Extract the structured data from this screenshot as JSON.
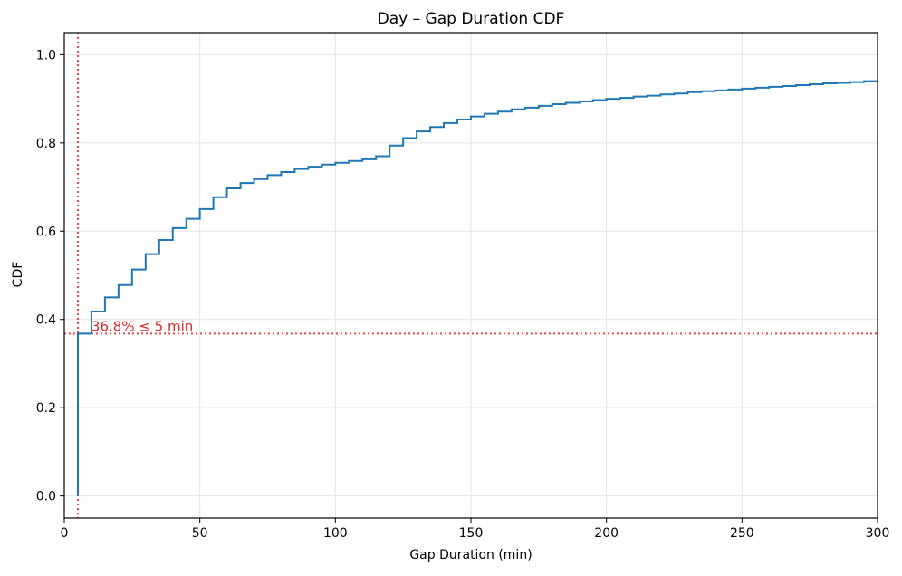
{
  "chart_data": {
    "type": "line",
    "subtype": "step-cdf",
    "title": "Day – Gap Duration CDF",
    "xlabel": "Gap Duration (min)",
    "ylabel": "CDF",
    "xlim": [
      0,
      300
    ],
    "ylim": [
      -0.05,
      1.05
    ],
    "xticks": [
      0,
      50,
      100,
      150,
      200,
      250,
      300
    ],
    "yticks": [
      0.0,
      0.2,
      0.4,
      0.6,
      0.8,
      1.0
    ],
    "ytick_labels": [
      "0.0",
      "0.2",
      "0.4",
      "0.6",
      "0.8",
      "1.0"
    ],
    "grid": true,
    "series": [
      {
        "name": "CDF",
        "color": "#1f77b4",
        "x": [
          5,
          5,
          10,
          15,
          20,
          25,
          30,
          35,
          40,
          45,
          50,
          55,
          60,
          65,
          70,
          75,
          80,
          85,
          90,
          95,
          100,
          105,
          110,
          115,
          120,
          125,
          130,
          135,
          140,
          145,
          150,
          155,
          160,
          165,
          170,
          175,
          180,
          185,
          190,
          195,
          200,
          205,
          210,
          215,
          220,
          225,
          230,
          235,
          240,
          245,
          250,
          255,
          260,
          265,
          270,
          275,
          280,
          285,
          290,
          295,
          300
        ],
        "y": [
          0.0,
          0.368,
          0.418,
          0.45,
          0.478,
          0.513,
          0.548,
          0.58,
          0.607,
          0.628,
          0.65,
          0.677,
          0.697,
          0.709,
          0.718,
          0.727,
          0.734,
          0.741,
          0.746,
          0.751,
          0.755,
          0.759,
          0.763,
          0.77,
          0.794,
          0.811,
          0.826,
          0.836,
          0.845,
          0.853,
          0.86,
          0.866,
          0.871,
          0.876,
          0.88,
          0.884,
          0.888,
          0.891,
          0.894,
          0.897,
          0.9,
          0.902,
          0.905,
          0.907,
          0.91,
          0.912,
          0.915,
          0.917,
          0.919,
          0.921,
          0.923,
          0.925,
          0.927,
          0.929,
          0.931,
          0.933,
          0.935,
          0.936,
          0.938,
          0.94,
          0.941
        ]
      }
    ],
    "reference_lines": {
      "color": "#e8474b",
      "vertical_x": 5,
      "horizontal_y": 0.368
    },
    "annotation": {
      "text": "36.8% ≤ 5 min",
      "x": 10,
      "y": 0.368,
      "color": "#d62728"
    }
  }
}
